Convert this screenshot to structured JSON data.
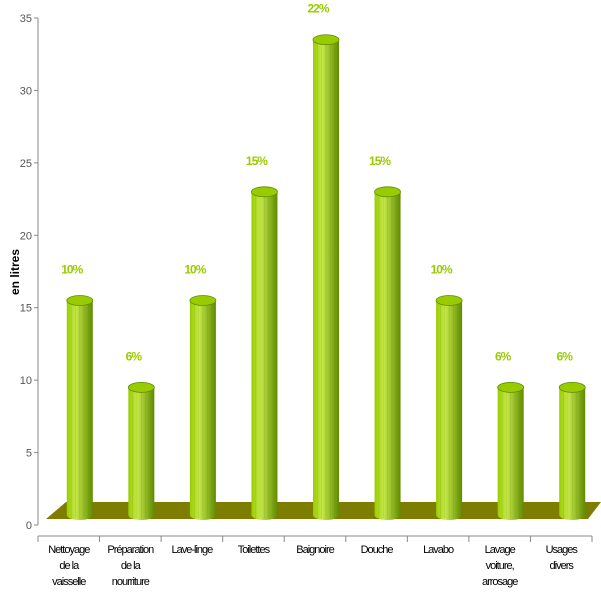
{
  "chart_data": {
    "type": "bar",
    "title": "",
    "xlabel": "",
    "ylabel": "en litres",
    "ylim": [
      0,
      35
    ],
    "yticks": [
      0,
      5,
      10,
      15,
      20,
      25,
      30,
      35
    ],
    "categories": [
      [
        "Nettoyage",
        "de la",
        "vaisselle"
      ],
      [
        "Préparation",
        "de la",
        "nourriture"
      ],
      [
        "Lave-linge"
      ],
      [
        "Toilettes"
      ],
      [
        "Baignoire"
      ],
      [
        "Douche"
      ],
      [
        "Lavabo"
      ],
      [
        "Lavage",
        "voiture,",
        "arrosage"
      ],
      [
        "Usages",
        "divers"
      ]
    ],
    "values": [
      15.5,
      9.5,
      15.5,
      23,
      33.5,
      23,
      15.5,
      9.5,
      9.5
    ],
    "data_labels": [
      "10%",
      "6%",
      "10%",
      "15%",
      "22%",
      "15%",
      "10%",
      "6%",
      "6%"
    ],
    "bar_shape": "cylinder",
    "grid": false,
    "legend": "none",
    "colors": {
      "bar_light": "#c6e84a",
      "bar_mid": "#99cc00",
      "bar_dark": "#5f8a00",
      "floor": "#7d7d00",
      "label": "#99cc00",
      "axis": "#888888"
    }
  }
}
